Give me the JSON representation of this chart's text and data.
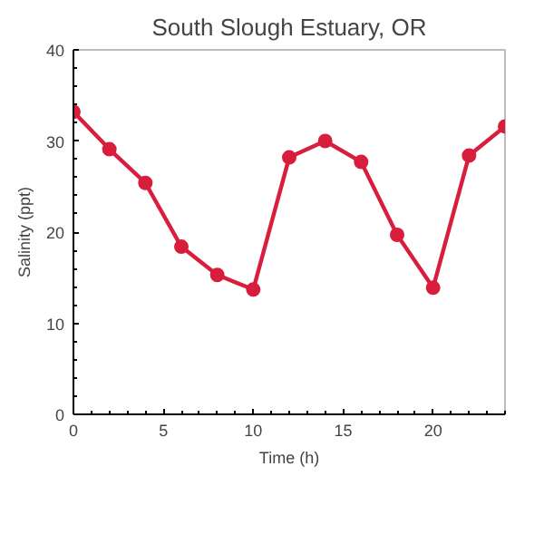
{
  "chart_data": {
    "type": "line",
    "title": "South Slough Estuary, OR",
    "xlabel": "Time (h)",
    "ylabel": "Salinity (ppt)",
    "x": [
      0,
      2,
      4,
      6,
      8,
      10,
      12,
      14,
      16,
      18,
      20,
      22,
      24
    ],
    "series": [
      {
        "color": "#d81e3c",
        "values": [
          33.2,
          29.1,
          25.4,
          18.4,
          15.3,
          13.7,
          28.2,
          30.0,
          27.7,
          19.7,
          13.9,
          28.4,
          31.6
        ]
      }
    ],
    "xlim": [
      0,
      24
    ],
    "ylim": [
      0,
      40
    ],
    "xticks": [
      0,
      5,
      10,
      15,
      20
    ],
    "yticks": [
      0,
      10,
      20,
      30,
      40
    ],
    "grid": false,
    "marker": "circle",
    "line_style": "solid"
  }
}
